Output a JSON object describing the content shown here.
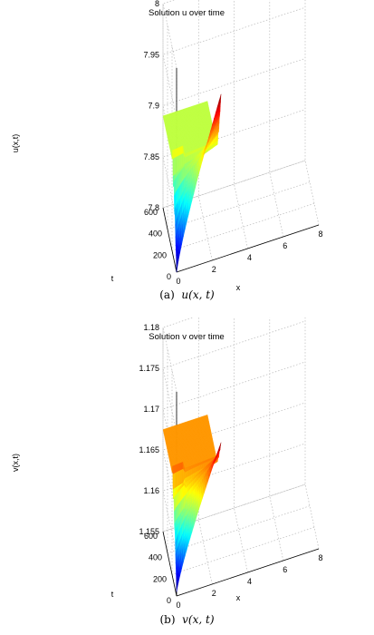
{
  "figure": {
    "captions": [
      {
        "label": "(a)",
        "expr": "u(x, t)"
      },
      {
        "label": "(b)",
        "expr": "v(x, t)"
      }
    ]
  },
  "chart_data": [
    {
      "type": "surface",
      "title": "Solution u over time",
      "xlabel": "x",
      "ylabel": "t",
      "zlabel": "u(x,t)",
      "xlim": [
        0,
        8
      ],
      "ylim": [
        0,
        600
      ],
      "zlim": [
        7.8,
        8
      ],
      "xticks": [
        "0",
        "2",
        "4",
        "6",
        "8"
      ],
      "yticks": [
        "0",
        "200",
        "400",
        "600"
      ],
      "zticks": [
        "7.8",
        "7.85",
        "7.9",
        "7.95",
        "8"
      ],
      "x_extent": [
        0,
        2.5
      ],
      "steady_value": 7.89,
      "final_profile": {
        "x": [
          0,
          2.5
        ],
        "z": [
          7.8,
          7.96
        ]
      },
      "colormap": "jet",
      "grid": true
    },
    {
      "type": "surface",
      "title": "Solution v over time",
      "xlabel": "x",
      "ylabel": "t",
      "zlabel": "v(x,t)",
      "xlim": [
        0,
        8
      ],
      "ylim": [
        0,
        600
      ],
      "zlim": [
        1.155,
        1.18
      ],
      "xticks": [
        "0",
        "2",
        "4",
        "6",
        "8"
      ],
      "yticks": [
        "0",
        "200",
        "400",
        "600"
      ],
      "zticks": [
        "1.155",
        "1.16",
        "1.165",
        "1.17",
        "1.175",
        "1.18"
      ],
      "x_extent": [
        0,
        2.5
      ],
      "steady_value": 1.1675,
      "final_profile": {
        "x": [
          0,
          2.5
        ],
        "z": [
          1.1555,
          1.172
        ]
      },
      "colormap": "jet",
      "grid": true
    }
  ]
}
